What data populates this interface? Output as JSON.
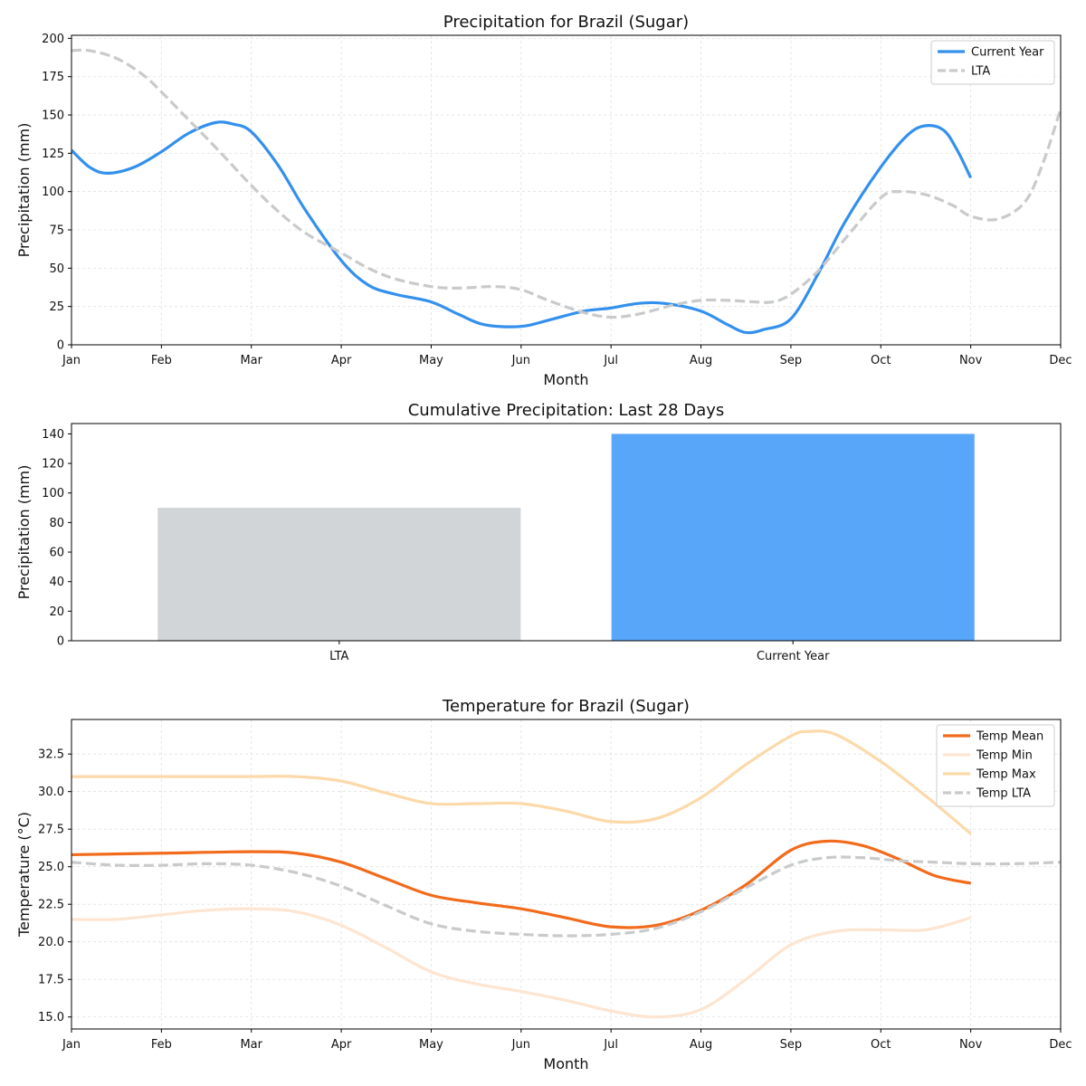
{
  "chart_data": [
    {
      "type": "line",
      "title": "Precipitation for Brazil (Sugar)",
      "xlabel": "Month",
      "ylabel": "Precipitation (mm)",
      "ylim": [
        0,
        202
      ],
      "yticks": [
        0,
        25,
        50,
        75,
        100,
        125,
        150,
        175,
        200
      ],
      "xticks": [
        "Jan",
        "Feb",
        "Mar",
        "Apr",
        "May",
        "Jun",
        "Jul",
        "Aug",
        "Sep",
        "Oct",
        "Nov",
        "Dec"
      ],
      "grid": true,
      "legend": "top-right",
      "series": [
        {
          "name": "Current Year",
          "color": "#3390ec",
          "style": "solid",
          "x": [
            0,
            0.2,
            0.4,
            0.7,
            1.0,
            1.3,
            1.6,
            1.8,
            2.0,
            2.3,
            2.6,
            3.0,
            3.3,
            3.6,
            4.0,
            4.3,
            4.6,
            5.0,
            5.3,
            5.7,
            6.0,
            6.3,
            6.6,
            7.0,
            7.3,
            7.5,
            7.7,
            8.0,
            8.3,
            8.6,
            9.0,
            9.3,
            9.5,
            9.7,
            9.85,
            10.0
          ],
          "y": [
            127,
            116,
            112,
            116,
            126,
            138,
            145,
            144,
            139,
            117,
            88,
            55,
            39,
            33,
            28,
            20,
            13,
            12,
            16,
            22,
            24,
            27,
            27,
            22,
            13,
            8,
            10,
            17,
            46,
            80,
            116,
            137,
            143,
            140,
            127,
            109
          ]
        },
        {
          "name": "LTA",
          "color": "#c8cacc",
          "style": "dashed",
          "x": [
            0,
            0.2,
            0.5,
            0.8,
            1.0,
            1.3,
            1.6,
            2.0,
            2.3,
            2.6,
            3.0,
            3.3,
            3.6,
            4.0,
            4.3,
            4.7,
            5.0,
            5.3,
            5.7,
            6.0,
            6.3,
            6.7,
            7.0,
            7.3,
            7.6,
            7.8,
            8.0,
            8.3,
            8.6,
            9.0,
            9.2,
            9.5,
            9.8,
            10.0,
            10.3,
            10.6,
            10.8,
            11.0
          ],
          "y": [
            192,
            192,
            187,
            176,
            165,
            147,
            129,
            104,
            87,
            73,
            60,
            50,
            43,
            38,
            37,
            38,
            36,
            29,
            21,
            18,
            20,
            26,
            29,
            29,
            28,
            28,
            33,
            48,
            69,
            96,
            100,
            98,
            91,
            84,
            82,
            93,
            118,
            154
          ]
        }
      ]
    },
    {
      "type": "bar",
      "title": "Cumulative Precipitation: Last 28 Days",
      "xlabel": "",
      "ylabel": "Precipitation (mm)",
      "ylim": [
        0,
        147
      ],
      "yticks": [
        0,
        20,
        40,
        60,
        80,
        100,
        120,
        140
      ],
      "categories": [
        "LTA",
        "Current Year"
      ],
      "values": [
        90,
        140
      ],
      "colors": [
        "#d1d5d8",
        "#58a6fa"
      ]
    },
    {
      "type": "line",
      "title": "Temperature for Brazil (Sugar)",
      "xlabel": "Month",
      "ylabel": "Temperature (°C)",
      "ylim": [
        14.2,
        34.8
      ],
      "yticks": [
        15.0,
        17.5,
        20.0,
        22.5,
        25.0,
        27.5,
        30.0,
        32.5
      ],
      "ytick_labels": [
        "15.0",
        "17.5",
        "20.0",
        "22.5",
        "25.0",
        "27.5",
        "30.0",
        "32.5"
      ],
      "xticks": [
        "Jan",
        "Feb",
        "Mar",
        "Apr",
        "May",
        "Jun",
        "Jul",
        "Aug",
        "Sep",
        "Oct",
        "Nov",
        "Dec"
      ],
      "grid": true,
      "legend": "top-right",
      "series": [
        {
          "name": "Temp Mean",
          "color": "#f26a1b",
          "style": "solid",
          "x": [
            0,
            1,
            2,
            2.5,
            3,
            3.5,
            4,
            4.5,
            5,
            5.5,
            6,
            6.5,
            7,
            7.5,
            8,
            8.4,
            8.8,
            9.2,
            9.6,
            10
          ],
          "y": [
            25.8,
            25.9,
            26.0,
            25.9,
            25.3,
            24.2,
            23.1,
            22.6,
            22.2,
            21.6,
            21.0,
            21.1,
            22.1,
            23.8,
            26.1,
            26.7,
            26.4,
            25.5,
            24.4,
            23.9
          ]
        },
        {
          "name": "Temp Min",
          "color": "#fde5d1",
          "style": "solid",
          "x": [
            0,
            0.5,
            1,
            1.5,
            2,
            2.5,
            3,
            3.5,
            4,
            4.5,
            5,
            5.5,
            6,
            6.5,
            7,
            7.5,
            8,
            8.5,
            9,
            9.5,
            10
          ],
          "y": [
            21.5,
            21.5,
            21.8,
            22.1,
            22.2,
            22.0,
            21.1,
            19.6,
            18.0,
            17.2,
            16.7,
            16.1,
            15.4,
            15.0,
            15.5,
            17.5,
            19.8,
            20.7,
            20.8,
            20.8,
            21.6
          ]
        },
        {
          "name": "Temp Max",
          "color": "#fcd9a9",
          "style": "solid",
          "x": [
            0,
            0.5,
            1,
            1.5,
            2,
            2.5,
            3,
            3.5,
            4,
            4.5,
            5,
            5.5,
            6,
            6.5,
            7,
            7.5,
            8,
            8.2,
            8.5,
            9,
            9.5,
            10
          ],
          "y": [
            31.0,
            31.0,
            31.0,
            31.0,
            31.0,
            31.0,
            30.7,
            29.9,
            29.2,
            29.2,
            29.2,
            28.7,
            28.0,
            28.2,
            29.6,
            31.8,
            33.7,
            34.0,
            33.8,
            32.0,
            29.7,
            27.2
          ]
        },
        {
          "name": "Temp LTA",
          "color": "#c8cacc",
          "style": "dashed",
          "x": [
            0,
            0.5,
            1,
            1.5,
            2,
            2.5,
            3,
            3.5,
            4,
            4.5,
            5,
            5.5,
            6,
            6.5,
            7,
            7.5,
            8,
            8.4,
            8.8,
            9.2,
            9.6,
            10,
            10.5,
            11
          ],
          "y": [
            25.3,
            25.1,
            25.1,
            25.2,
            25.1,
            24.6,
            23.7,
            22.4,
            21.2,
            20.7,
            20.5,
            20.4,
            20.5,
            20.9,
            22.0,
            23.6,
            25.1,
            25.6,
            25.6,
            25.4,
            25.3,
            25.2,
            25.2,
            25.3
          ]
        }
      ]
    }
  ]
}
